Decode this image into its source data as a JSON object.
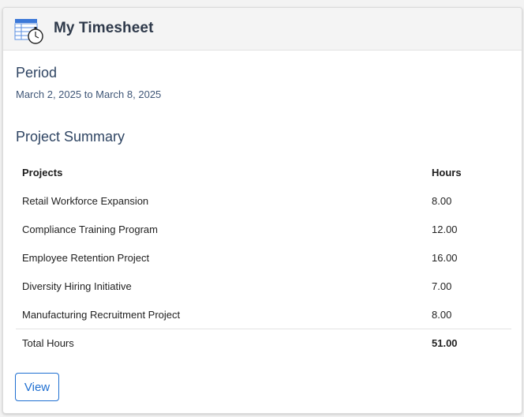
{
  "header": {
    "title": "My Timesheet",
    "icon": "timesheet-stopwatch-icon"
  },
  "period": {
    "title": "Period",
    "value": "March 2, 2025 to March 8, 2025"
  },
  "summary": {
    "title": "Project Summary",
    "columns": [
      "Projects",
      "Hours"
    ],
    "rows": [
      {
        "project": "Retail Workforce Expansion",
        "hours": "8.00"
      },
      {
        "project": "Compliance Training Program",
        "hours": "12.00"
      },
      {
        "project": "Employee Retention Project",
        "hours": "16.00"
      },
      {
        "project": "Diversity Hiring Initiative",
        "hours": "7.00"
      },
      {
        "project": "Manufacturing Recruitment Project",
        "hours": "8.00"
      }
    ],
    "total_label": "Total Hours",
    "total_value": "51.00"
  },
  "actions": {
    "view_label": "View"
  },
  "colors": {
    "accent": "#1f6fd1",
    "heading": "#2f4563"
  }
}
